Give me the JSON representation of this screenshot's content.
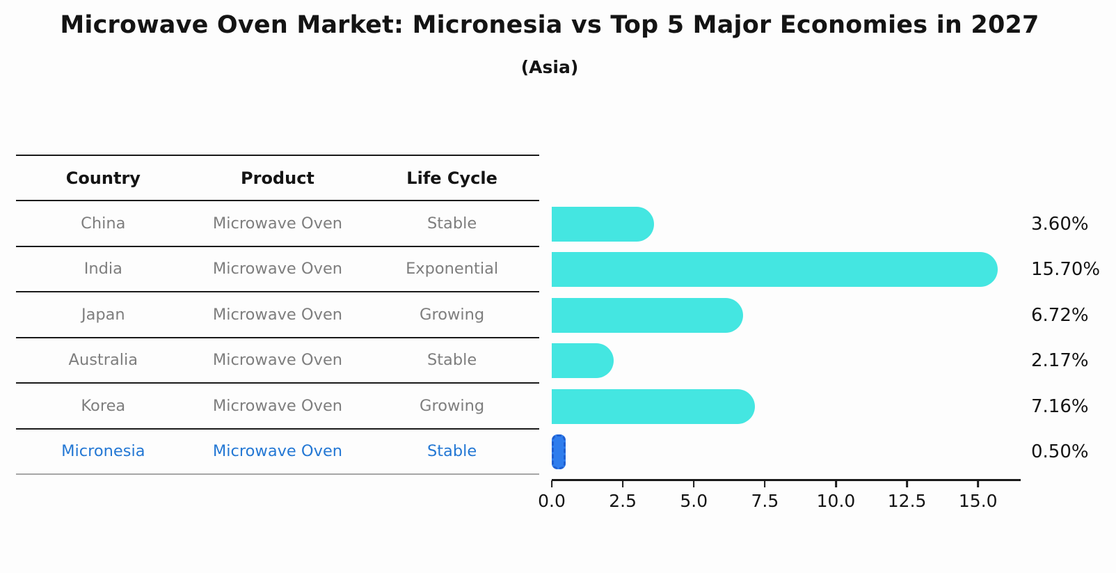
{
  "title": "Microwave Oven Market: Micronesia vs Top 5 Major Economies in 2027",
  "subtitle": "(Asia)",
  "table": {
    "headers": [
      "Country",
      "Product",
      "Life Cycle"
    ],
    "rows": [
      {
        "country": "China",
        "product": "Microwave Oven",
        "life_cycle": "Stable",
        "highlight": false
      },
      {
        "country": "India",
        "product": "Microwave Oven",
        "life_cycle": "Exponential",
        "highlight": false
      },
      {
        "country": "Japan",
        "product": "Microwave Oven",
        "life_cycle": "Growing",
        "highlight": false
      },
      {
        "country": "Australia",
        "product": "Microwave Oven",
        "life_cycle": "Stable",
        "highlight": false
      },
      {
        "country": "Korea",
        "product": "Microwave Oven",
        "life_cycle": "Growing",
        "highlight": false
      },
      {
        "country": "Micronesia",
        "product": "Microwave Oven",
        "life_cycle": "Stable",
        "highlight": true
      }
    ]
  },
  "chart_data": {
    "type": "bar",
    "orientation": "horizontal",
    "title": "Microwave Oven Market: Micronesia vs Top 5 Major Economies in 2027",
    "subtitle": "(Asia)",
    "categories": [
      "China",
      "India",
      "Japan",
      "Australia",
      "Korea",
      "Micronesia"
    ],
    "values": [
      3.6,
      15.7,
      6.72,
      2.17,
      7.16,
      0.5
    ],
    "labels": [
      "3.60%",
      "15.70%",
      "6.72%",
      "2.17%",
      "7.16%",
      "0.50%"
    ],
    "xlim": [
      0,
      16.5
    ],
    "xticks": [
      "0.0",
      "2.5",
      "5.0",
      "7.5",
      "10.0",
      "12.5",
      "15.0"
    ],
    "xtick_values": [
      0,
      2.5,
      5,
      7.5,
      10,
      12.5,
      15
    ],
    "grid": false,
    "legend": "none",
    "bar_color": "#44e6e1",
    "highlight_index": 5,
    "highlight_color": "#2f7ded",
    "highlight_border_color": "#1f5fd1"
  },
  "colors": {
    "highlight_text": "#2478d4",
    "table_text": "#7e7e7e",
    "header_text": "#141414",
    "axis_color": "#1a1a1a"
  }
}
